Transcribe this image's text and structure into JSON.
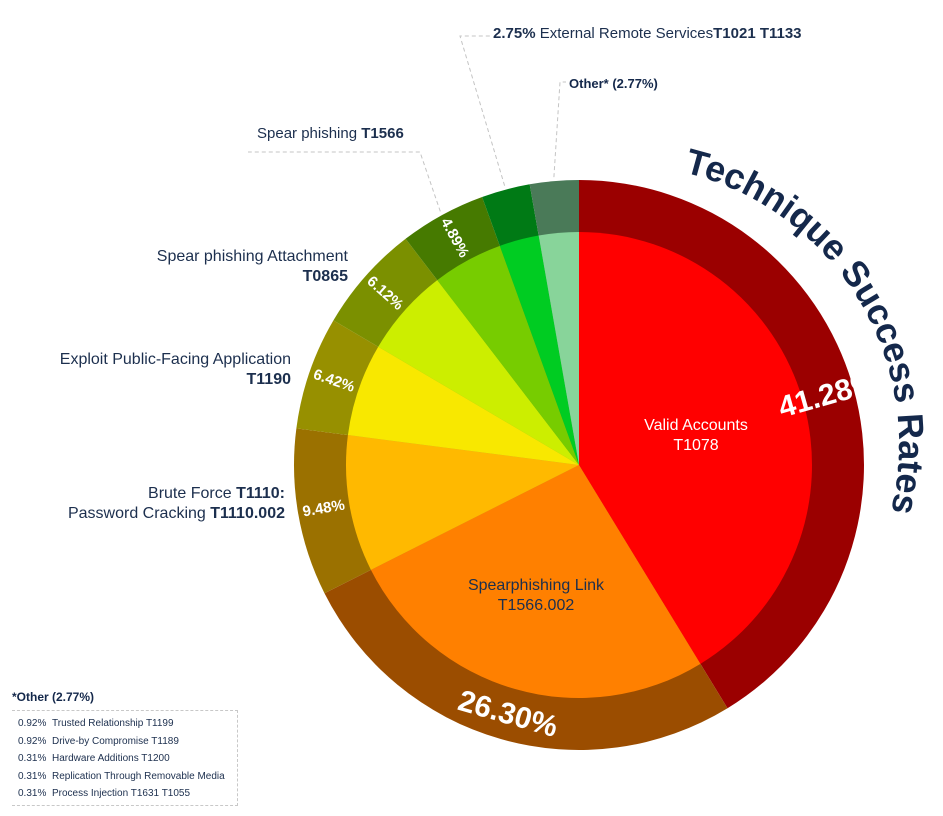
{
  "chart_data": {
    "type": "pie",
    "title": "Technique Success Rates",
    "slices": [
      {
        "label": "Valid Accounts",
        "code": "T1078",
        "value": 41.28,
        "pct_label": "41.28%",
        "inner": "#ff0000",
        "outer": "#9b0000"
      },
      {
        "label": "Spearphishing Link",
        "code": "T1566.002",
        "value": 26.3,
        "pct_label": "26.30%",
        "inner": "#ff8000",
        "outer": "#9b4d00"
      },
      {
        "label": "Brute Force T1110: Password Cracking T1110.002",
        "value": 9.48,
        "pct_label": "9.48%",
        "inner": "#ffb900",
        "outer": "#9b7100"
      },
      {
        "label": "Exploit Public-Facing Application T1190",
        "value": 6.42,
        "pct_label": "6.42%",
        "inner": "#f8e800",
        "outer": "#979000"
      },
      {
        "label": "Spear phishing Attachment T0865",
        "value": 6.12,
        "pct_label": "6.12%",
        "inner": "#ccee00",
        "outer": "#7b9000"
      },
      {
        "label": "Spear phishing T1566",
        "value": 4.89,
        "pct_label": "4.89%",
        "inner": "#77cc00",
        "outer": "#467a00"
      },
      {
        "label": "External Remote Services T1021 T1133",
        "value": 2.75,
        "pct_label": "2.75%",
        "inner": "#00cc22",
        "outer": "#007a15"
      },
      {
        "label": "Other*",
        "value": 2.77,
        "pct_label": "(2.77%)",
        "inner": "#88d49a",
        "outer": "#4a7a58"
      }
    ]
  },
  "labels": {
    "valid_name": "Valid Accounts",
    "valid_code": "T1078",
    "link_name": "Spearphishing Link",
    "link_code": "T1566.002",
    "brute_1a": "Brute Force ",
    "brute_1b": "T1110:",
    "brute_2a": "Password Cracking ",
    "brute_2b": "T1110.002",
    "exploit_1": "Exploit Public-Facing Application",
    "exploit_2": "T1190",
    "attach_1": "Spear phishing Attachment",
    "attach_2": "T0865",
    "spear_a": "Spear phishing ",
    "spear_b": "T1566",
    "ext_pct": "2.75%",
    "ext_name": " External Remote Services",
    "ext_codes": "T1021 T1133",
    "other_a": "Other*",
    "other_b": " (2.77%)"
  },
  "legend": {
    "title": "*Other (2.77%)",
    "items": [
      {
        "pct": "0.92%",
        "text": "Trusted Relationship T1199"
      },
      {
        "pct": "0.92%",
        "text": "Drive-by Compromise T1189"
      },
      {
        "pct": "0.31%",
        "text": "Hardware Additions T1200"
      },
      {
        "pct": "0.31%",
        "text": "Replication Through Removable Media"
      },
      {
        "pct": "0.31%",
        "text": "Process Injection T1631 T1055"
      }
    ]
  }
}
